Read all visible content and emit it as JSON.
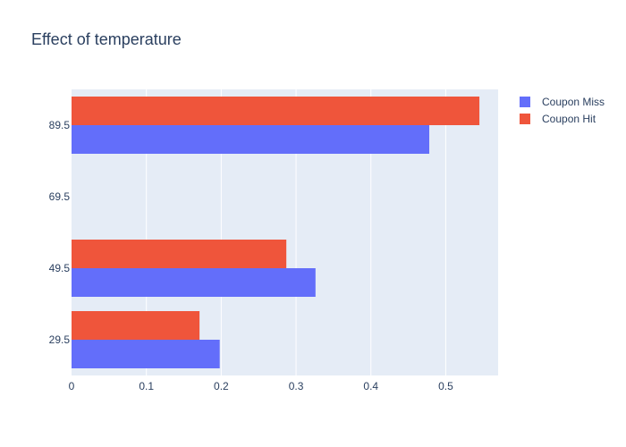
{
  "chart_data": {
    "type": "bar",
    "orientation": "horizontal",
    "title": "Effect of temperature",
    "xlabel": "",
    "ylabel": "",
    "categories": [
      "29.5",
      "49.5",
      "69.5",
      "89.5"
    ],
    "xlim": [
      0,
      0.57
    ],
    "xticks": [
      0,
      0.1,
      0.2,
      0.3,
      0.4,
      0.5
    ],
    "xtick_labels": [
      "0",
      "0.1",
      "0.2",
      "0.3",
      "0.4",
      "0.5"
    ],
    "series": [
      {
        "name": "Coupon Miss",
        "color": "#636efa",
        "values": [
          0.198,
          0.326,
          null,
          0.478
        ]
      },
      {
        "name": "Coupon Hit",
        "color": "#ef553b",
        "values": [
          0.171,
          0.287,
          null,
          0.545
        ]
      }
    ],
    "grid": true,
    "background": "#e5ecf6",
    "legend": "top-right"
  }
}
